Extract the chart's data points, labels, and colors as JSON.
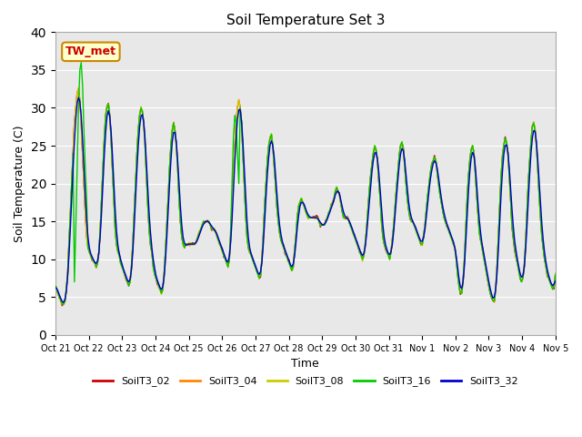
{
  "title": "Soil Temperature Set 3",
  "xlabel": "Time",
  "ylabel": "Soil Temperature (C)",
  "ylim": [
    0,
    40
  ],
  "annotation": "TW_met",
  "background_color": "#e8e8e8",
  "series_colors": {
    "SoilT3_02": "#cc0000",
    "SoilT3_04": "#ff8800",
    "SoilT3_08": "#cccc00",
    "SoilT3_16": "#00cc00",
    "SoilT3_32": "#0000cc"
  },
  "xtick_labels": [
    "Oct 21",
    "Oct 22",
    "Oct 23",
    "Oct 24",
    "Oct 25",
    "Oct 26",
    "Oct 27",
    "Oct 28",
    "Oct 29",
    "Oct 30",
    "Oct 31",
    "Nov 1",
    "Nov 2",
    "Nov 3",
    "Nov 4",
    "Nov 5"
  ],
  "base_profile": [
    6.5,
    6.0,
    5.5,
    5.0,
    4.5,
    4.2,
    4.0,
    4.5,
    6.0,
    8.0,
    12.0,
    16.0,
    20.0,
    24.0,
    28.0,
    30.0,
    32.0,
    32.5,
    31.0,
    28.0,
    24.0,
    20.0,
    16.0,
    13.0,
    11.5,
    11.0,
    10.5,
    10.0,
    9.8,
    9.5,
    9.0,
    9.5,
    11.0,
    14.0,
    18.0,
    22.0,
    26.0,
    29.0,
    30.0,
    30.5,
    29.0,
    26.0,
    22.0,
    18.0,
    14.0,
    12.0,
    11.0,
    10.5,
    9.5,
    9.0,
    8.5,
    8.0,
    7.5,
    7.0,
    6.5,
    7.0,
    9.0,
    12.0,
    16.0,
    20.0,
    24.0,
    27.0,
    29.0,
    30.0,
    29.5,
    28.0,
    25.0,
    21.0,
    17.0,
    14.0,
    12.0,
    11.0,
    9.0,
    8.0,
    7.5,
    7.0,
    6.5,
    6.0,
    5.5,
    6.0,
    8.0,
    11.0,
    14.5,
    18.0,
    22.0,
    25.0,
    27.0,
    28.0,
    27.0,
    25.0,
    22.0,
    18.0,
    15.0,
    13.0,
    12.0,
    11.5,
    12.0,
    12.0,
    12.0,
    12.0,
    12.0,
    12.0,
    12.0,
    12.0,
    12.5,
    13.0,
    13.5,
    14.0,
    14.5,
    15.0,
    15.0,
    15.0,
    15.0,
    15.0,
    14.5,
    14.0,
    14.0,
    14.0,
    13.5,
    13.0,
    12.5,
    12.0,
    11.5,
    11.0,
    10.5,
    10.0,
    9.5,
    9.0,
    10.0,
    13.0,
    17.0,
    21.0,
    25.0,
    28.0,
    30.0,
    31.0,
    30.0,
    28.0,
    24.0,
    20.0,
    16.0,
    13.0,
    11.5,
    11.0,
    10.5,
    10.0,
    9.5,
    9.0,
    8.5,
    8.0,
    7.5,
    8.0,
    10.0,
    13.0,
    17.0,
    20.0,
    23.0,
    25.0,
    26.0,
    26.5,
    25.0,
    22.5,
    20.0,
    17.0,
    15.0,
    13.5,
    12.5,
    12.0,
    11.5,
    11.0,
    10.5,
    10.0,
    9.5,
    9.0,
    8.5,
    9.0,
    11.0,
    13.0,
    15.5,
    17.0,
    17.5,
    18.0,
    17.5,
    17.0,
    16.5,
    16.0,
    15.5,
    15.5,
    15.5,
    15.5,
    15.5,
    15.5,
    15.5,
    15.5,
    15.0,
    14.5,
    14.5,
    14.5,
    14.5,
    15.0,
    15.5,
    16.0,
    16.5,
    17.0,
    17.5,
    18.0,
    19.0,
    19.5,
    19.0,
    18.5,
    17.5,
    16.5,
    15.5,
    15.5,
    15.5,
    15.5,
    15.0,
    14.5,
    14.0,
    13.5,
    13.0,
    12.5,
    12.0,
    11.5,
    11.0,
    10.5,
    10.0,
    10.5,
    12.0,
    14.0,
    16.5,
    19.0,
    21.0,
    22.5,
    24.0,
    25.0,
    24.5,
    23.0,
    20.5,
    18.0,
    15.0,
    13.0,
    12.0,
    11.5,
    11.0,
    10.5,
    10.0,
    11.0,
    12.5,
    14.5,
    17.0,
    19.5,
    21.5,
    23.5,
    25.0,
    25.5,
    24.5,
    22.5,
    20.0,
    18.0,
    16.5,
    15.5,
    15.0,
    15.0,
    14.5,
    14.0,
    13.5,
    13.0,
    12.5,
    12.0,
    12.0,
    13.0,
    14.5,
    16.5,
    18.5,
    20.0,
    21.5,
    22.5,
    23.0,
    23.5,
    23.0,
    21.5,
    20.0,
    18.5,
    17.5,
    16.5,
    15.5,
    15.0,
    14.5,
    14.0,
    13.5,
    13.0,
    12.5,
    12.0,
    11.5,
    10.0,
    8.0,
    6.5,
    5.5,
    5.5,
    7.0,
    10.0,
    14.0,
    18.0,
    21.0,
    23.0,
    24.5,
    25.0,
    24.0,
    21.5,
    18.5,
    16.0,
    13.5,
    12.5,
    11.5,
    10.5,
    9.5,
    8.5,
    7.5,
    6.5,
    5.5,
    5.0,
    4.5,
    4.5,
    6.0,
    9.0,
    13.0,
    17.0,
    21.0,
    23.5,
    25.0,
    26.0,
    25.5,
    24.0,
    21.0,
    18.0,
    14.5,
    13.0,
    11.5,
    10.5,
    9.5,
    8.5,
    7.5,
    7.0,
    7.5,
    9.0,
    12.0,
    16.0,
    20.0,
    23.0,
    25.5,
    27.5,
    28.0,
    27.0,
    25.0,
    22.0,
    18.5,
    15.5,
    13.0,
    11.5,
    10.0,
    9.0,
    8.0,
    7.5,
    7.0,
    6.5,
    6.0,
    6.5,
    8.0
  ]
}
